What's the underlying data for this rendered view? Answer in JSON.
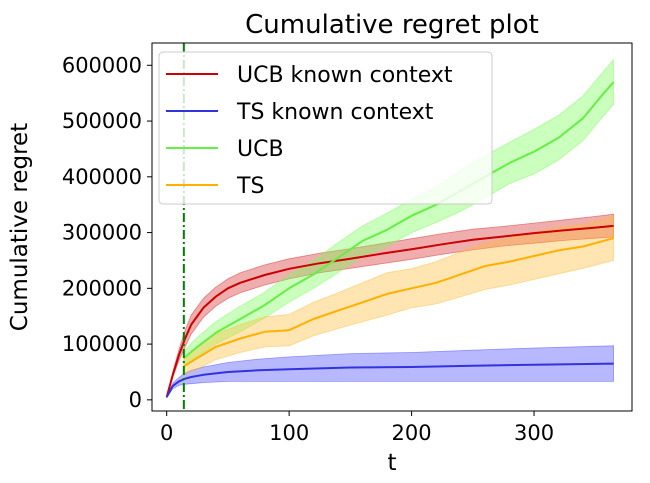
{
  "chart_data": {
    "type": "line",
    "title": "Cumulative regret plot",
    "xlabel": "t",
    "ylabel": "Cumulative regret",
    "xlim": [
      -12,
      380
    ],
    "ylim": [
      -20000,
      640000
    ],
    "xticks": [
      0,
      100,
      200,
      300
    ],
    "yticks": [
      0,
      100000,
      200000,
      300000,
      400000,
      500000,
      600000
    ],
    "grid": false,
    "legend": "top-left",
    "vline": {
      "x": 14,
      "color": "#008000",
      "style": "dash-dot"
    },
    "series": [
      {
        "name": "UCB known context",
        "color": "#cc0000",
        "band_color": "#d62728",
        "x": [
          0,
          5,
          10,
          15,
          20,
          30,
          40,
          50,
          60,
          80,
          100,
          125,
          150,
          175,
          200,
          225,
          250,
          275,
          300,
          325,
          350,
          365
        ],
        "y": [
          5000,
          45000,
          80000,
          110000,
          135000,
          165000,
          185000,
          200000,
          210000,
          224000,
          235000,
          245000,
          253000,
          262000,
          270000,
          279000,
          287000,
          293000,
          299000,
          304000,
          309000,
          312000
        ],
        "lower": [
          4000,
          40000,
          70000,
          95000,
          118000,
          148000,
          168000,
          182000,
          192000,
          206000,
          217000,
          228000,
          236000,
          244000,
          252000,
          261000,
          269000,
          276000,
          281000,
          286000,
          290000,
          292000
        ],
        "upper": [
          6000,
          50000,
          90000,
          125000,
          152000,
          182000,
          202000,
          217000,
          228000,
          242000,
          253000,
          263000,
          271000,
          280000,
          289000,
          298000,
          306000,
          311000,
          317000,
          323000,
          329000,
          333000
        ]
      },
      {
        "name": "TS known context",
        "color": "#3333dd",
        "band_color": "#4444ff",
        "x": [
          0,
          5,
          10,
          15,
          20,
          30,
          50,
          75,
          100,
          150,
          200,
          250,
          300,
          365
        ],
        "y": [
          5000,
          25000,
          33000,
          38000,
          41000,
          45000,
          50000,
          53000,
          55000,
          58000,
          59000,
          61000,
          63000,
          65000
        ],
        "lower": [
          4000,
          20000,
          26000,
          28000,
          29000,
          31000,
          33000,
          33000,
          33000,
          33000,
          33000,
          33000,
          33000,
          33000
        ],
        "upper": [
          6000,
          30000,
          40000,
          48000,
          53000,
          59000,
          67000,
          73000,
          77000,
          83000,
          85000,
          89000,
          93000,
          97000
        ]
      },
      {
        "name": "UCB",
        "color": "#66ee44",
        "band_color": "#77ff55",
        "x": [
          14,
          25,
          40,
          60,
          80,
          100,
          120,
          140,
          160,
          180,
          200,
          220,
          240,
          260,
          280,
          300,
          320,
          340,
          355,
          365
        ],
        "y": [
          75000,
          95000,
          120000,
          145000,
          170000,
          200000,
          225000,
          255000,
          285000,
          305000,
          330000,
          350000,
          375000,
          400000,
          425000,
          445000,
          470000,
          505000,
          545000,
          570000
        ],
        "lower": [
          62000,
          78000,
          100000,
          122000,
          147000,
          175000,
          200000,
          228000,
          258000,
          275000,
          300000,
          318000,
          338000,
          362000,
          388000,
          405000,
          430000,
          465000,
          505000,
          530000
        ],
        "upper": [
          88000,
          112000,
          140000,
          168000,
          193000,
          225000,
          250000,
          282000,
          312000,
          335000,
          360000,
          382000,
          412000,
          438000,
          462000,
          485000,
          510000,
          545000,
          585000,
          610000
        ]
      },
      {
        "name": "TS",
        "color": "#ffb000",
        "band_color": "#ffbb33",
        "x": [
          14,
          25,
          40,
          60,
          80,
          100,
          120,
          140,
          160,
          180,
          200,
          220,
          240,
          260,
          280,
          300,
          320,
          340,
          365
        ],
        "y": [
          60000,
          75000,
          95000,
          110000,
          122000,
          125000,
          145000,
          160000,
          175000,
          190000,
          200000,
          210000,
          225000,
          240000,
          248000,
          258000,
          268000,
          275000,
          290000
        ],
        "lower": [
          45000,
          55000,
          72000,
          85000,
          95000,
          97000,
          115000,
          128000,
          140000,
          152000,
          165000,
          172000,
          185000,
          198000,
          206000,
          216000,
          226000,
          236000,
          250000
        ],
        "upper": [
          75000,
          95000,
          118000,
          135000,
          149000,
          153000,
          175000,
          192000,
          210000,
          228000,
          235000,
          248000,
          265000,
          282000,
          290000,
          300000,
          310000,
          314000,
          330000
        ]
      }
    ]
  }
}
